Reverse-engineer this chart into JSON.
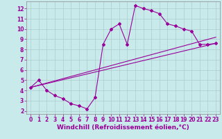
{
  "xlabel": "Windchill (Refroidissement éolien,°C)",
  "bg_color": "#c8eaea",
  "grid_color": "#aacccc",
  "line_color": "#990099",
  "xlim": [
    -0.5,
    23.5
  ],
  "ylim": [
    1.7,
    12.7
  ],
  "xticks": [
    0,
    1,
    2,
    3,
    4,
    5,
    6,
    7,
    8,
    9,
    10,
    11,
    12,
    13,
    14,
    15,
    16,
    17,
    18,
    19,
    20,
    21,
    22,
    23
  ],
  "yticks": [
    2,
    3,
    4,
    5,
    6,
    7,
    8,
    9,
    10,
    11,
    12
  ],
  "line1_x": [
    0,
    1,
    2,
    3,
    4,
    5,
    6,
    7,
    8,
    9,
    10,
    11,
    12,
    13,
    14,
    15,
    16,
    17,
    18,
    19,
    20,
    21,
    22,
    23
  ],
  "line1_y": [
    4.3,
    5.0,
    4.0,
    3.5,
    3.2,
    2.7,
    2.5,
    2.2,
    3.3,
    8.5,
    10.0,
    10.5,
    8.5,
    12.3,
    12.0,
    11.8,
    11.5,
    10.5,
    10.3,
    10.0,
    9.8,
    8.5,
    8.5,
    8.6
  ],
  "line2_x": [
    0,
    23
  ],
  "line2_y": [
    4.3,
    8.6
  ],
  "line3_x": [
    0,
    23
  ],
  "line3_y": [
    4.3,
    9.2
  ],
  "fontsize_xlabel": 6.5,
  "fontsize_ticks": 5.5,
  "marker": "D",
  "markersize": 2.0,
  "linewidth": 0.8
}
